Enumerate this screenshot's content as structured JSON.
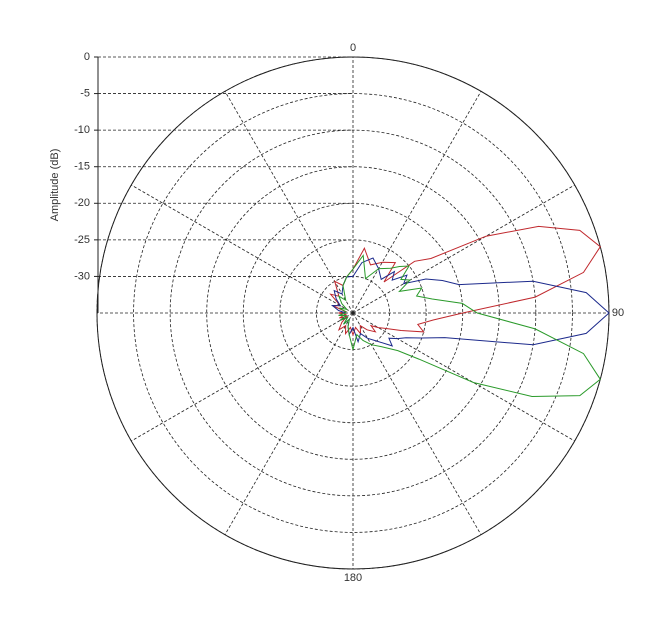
{
  "chart_data": {
    "type": "polar",
    "ylabel": "Amplitude (dB)",
    "rlim": [
      -35,
      0
    ],
    "yticks": [
      0,
      -5,
      -10,
      -15,
      -20,
      -25,
      -30
    ],
    "thetaticks": [
      0,
      90,
      180
    ],
    "thetagrid": [
      0,
      30,
      60,
      90,
      120,
      150,
      180,
      210,
      240,
      270,
      300,
      330
    ],
    "grid": true,
    "theta": [
      0,
      10,
      20,
      30,
      40,
      45,
      50,
      55,
      60,
      65,
      70,
      75,
      80,
      85,
      90,
      95,
      100,
      105,
      110,
      115,
      120,
      125,
      130,
      140,
      150,
      160,
      170,
      180,
      190,
      200,
      210,
      220,
      230,
      240,
      250,
      260,
      270,
      280,
      290,
      300,
      310,
      320,
      330,
      340,
      350
    ],
    "series": [
      {
        "color": "#c0282d",
        "values": [
          -29,
          -26,
          -28,
          -27,
          -26,
          -29,
          -24,
          -22,
          -14,
          -7,
          -2,
          0,
          -3,
          -10,
          -20,
          -24,
          -26,
          -25,
          -28,
          -30,
          -31,
          -32,
          -31,
          -32,
          -33,
          -32,
          -33,
          -32,
          -33,
          -32,
          -33,
          -32,
          -33,
          -34,
          -33,
          -34,
          -33,
          -34,
          -32,
          -33,
          -31,
          -32,
          -30,
          -31,
          -30
        ]
      },
      {
        "color": "#1c2a8c",
        "values": [
          -30,
          -28,
          -27,
          -28,
          -29,
          -27,
          -28,
          -26,
          -27,
          -24,
          -22,
          -20,
          -10,
          -3,
          0,
          -3,
          -10,
          -22,
          -25,
          -27,
          -28,
          -29,
          -28,
          -30,
          -31,
          -32,
          -31,
          -33,
          -32,
          -33,
          -34,
          -33,
          -34,
          -33,
          -34,
          -33,
          -34,
          -33,
          -32,
          -33,
          -32,
          -31,
          -32,
          -31,
          -30
        ]
      },
      {
        "color": "#2a9a2a",
        "values": [
          -29,
          -27,
          -30,
          -28,
          -27,
          -26,
          -25,
          -27,
          -26,
          -28,
          -25,
          -26,
          -24,
          -20,
          -18,
          -10,
          -3,
          0,
          -2,
          -8,
          -16,
          -24,
          -27,
          -29,
          -30,
          -31,
          -32,
          -30,
          -32,
          -33,
          -34,
          -33,
          -34,
          -33,
          -34,
          -33,
          -34,
          -34,
          -33,
          -34,
          -33,
          -32,
          -33,
          -31,
          -30
        ]
      }
    ]
  }
}
